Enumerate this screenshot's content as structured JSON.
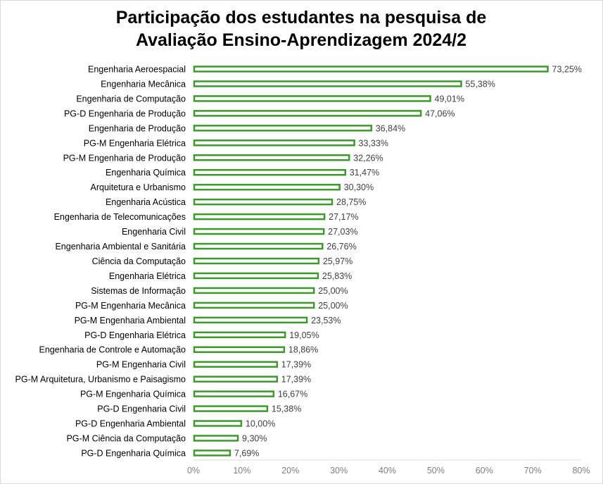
{
  "chart_data": {
    "type": "bar",
    "orientation": "horizontal",
    "title": [
      "Participação dos estudantes na pesquisa de",
      "Avaliação Ensino-Aprendizagem 2024/2"
    ],
    "categories": [
      "Engenharia Aeroespacial",
      "Engenharia Mecânica",
      "Engenharia de Computação",
      "PG-D Engenharia de Produção",
      "Engenharia de Produção",
      "PG-M Engenharia Elétrica",
      "PG-M Engenharia de Produção",
      "Engenharia Química",
      "Arquitetura e Urbanismo",
      "Engenharia Acústica",
      "Engenharia de Telecomunicações",
      "Engenharia Civil",
      "Engenharia Ambiental e Sanitária",
      "Ciência da Computação",
      "Engenharia Elétrica",
      "Sistemas de Informação",
      "PG-M Engenharia Mecânica",
      "PG-M Engenharia Ambiental",
      "PG-D Engenharia Elétrica",
      "Engenharia de Controle e Automação",
      "PG-M Engenharia Civil",
      "PG-M Arquitetura, Urbanismo e Paisagismo",
      "PG-M Engenharia Química",
      "PG-D Engenharia Civil",
      "PG-D Engenharia Ambiental",
      "PG-M Ciência da Computação",
      "PG-D Engenharia Química"
    ],
    "values": [
      73.25,
      55.38,
      49.01,
      47.06,
      36.84,
      33.33,
      32.26,
      31.47,
      30.3,
      28.75,
      27.17,
      27.03,
      26.76,
      25.97,
      25.83,
      25.0,
      25.0,
      23.53,
      19.05,
      18.86,
      17.39,
      17.39,
      16.67,
      15.38,
      10.0,
      9.3,
      7.69
    ],
    "labels": [
      "73,25%",
      "55,38%",
      "49,01%",
      "47,06%",
      "36,84%",
      "33,33%",
      "32,26%",
      "31,47%",
      "30,30%",
      "28,75%",
      "27,17%",
      "27,03%",
      "26,76%",
      "25,97%",
      "25,83%",
      "25,00%",
      "25,00%",
      "23,53%",
      "19,05%",
      "18,86%",
      "17,39%",
      "17,39%",
      "16,67%",
      "15,38%",
      "10,00%",
      "9,30%",
      "7,69%"
    ],
    "xlim": [
      0,
      80
    ],
    "xticks": [
      "0%",
      "10%",
      "20%",
      "30%",
      "40%",
      "50%",
      "60%",
      "70%",
      "80%"
    ],
    "xlabel": "",
    "ylabel": "",
    "grid": false,
    "legend": "none",
    "colors": {
      "bar_stroke": "#3c9a2b",
      "bar_fill": "#ffffff",
      "axis": "#d9d9d9"
    }
  }
}
